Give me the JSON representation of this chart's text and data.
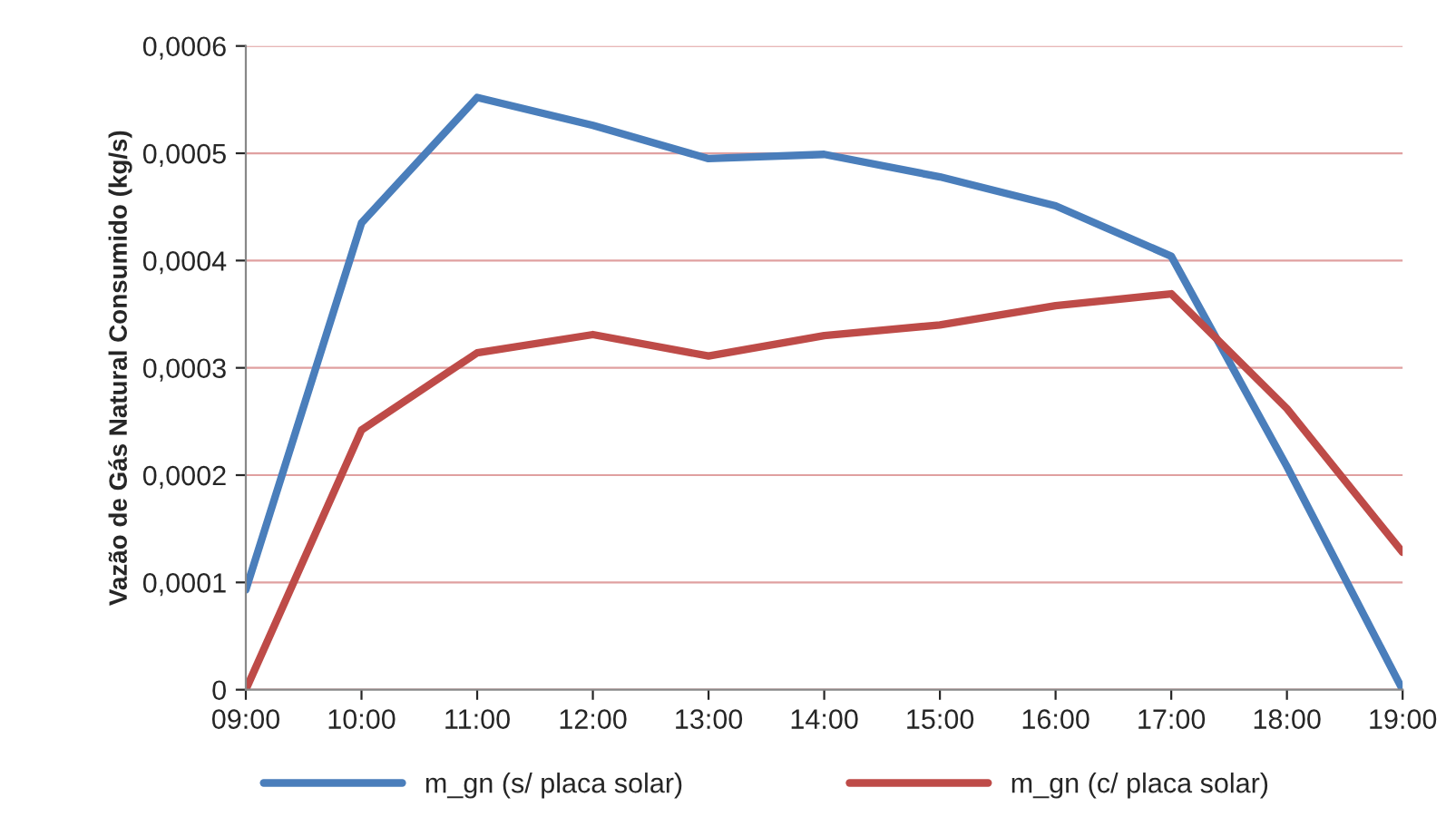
{
  "chart_data": {
    "type": "line",
    "ylabel": "Vazão de Gás Natural Consumido (kg/s)",
    "x": [
      9,
      10,
      11,
      12,
      13,
      14,
      15,
      16,
      17,
      18,
      19
    ],
    "xlim": [
      9,
      19
    ],
    "xticks": [
      {
        "value": 9,
        "label": "09:00"
      },
      {
        "value": 10,
        "label": "10:00"
      },
      {
        "value": 11,
        "label": "11:00"
      },
      {
        "value": 12,
        "label": "12:00"
      },
      {
        "value": 13,
        "label": "13:00"
      },
      {
        "value": 14,
        "label": "14:00"
      },
      {
        "value": 15,
        "label": "15:00"
      },
      {
        "value": 16,
        "label": "16:00"
      },
      {
        "value": 17,
        "label": "17:00"
      },
      {
        "value": 18,
        "label": "18:00"
      },
      {
        "value": 19,
        "label": "19:00"
      }
    ],
    "ylim": [
      0,
      0.0006
    ],
    "yticks": [
      0,
      {
        "value": 0.0001,
        "label": "0,0001"
      },
      {
        "value": 0.0002,
        "label": "0,0002"
      },
      {
        "value": 0.0003,
        "label": "0,0003"
      },
      {
        "value": 0.0004,
        "label": "0,0004"
      },
      {
        "value": 0.0005,
        "label": "0,0005"
      },
      {
        "value": 0.0006,
        "label": "0,0006"
      }
    ],
    "grid": "y",
    "legend": "bottom",
    "marker": "none",
    "line_style": "solid",
    "series": [
      {
        "name": "m_gn (s/ placa solar)",
        "color": "#4a7ebb",
        "values": [
          9.3e-05,
          0.000435,
          0.000552,
          0.000526,
          0.000495,
          0.000499,
          0.000478,
          0.000451,
          0.000404,
          0.000208,
          0.0
        ]
      },
      {
        "name": "m_gn (c/ placa solar)",
        "color": "#be4b48",
        "values": [
          0.0,
          0.000242,
          0.000314,
          0.000331,
          0.000311,
          0.00033,
          0.00034,
          0.000358,
          0.000369,
          0.000262,
          0.000128
        ]
      }
    ]
  }
}
